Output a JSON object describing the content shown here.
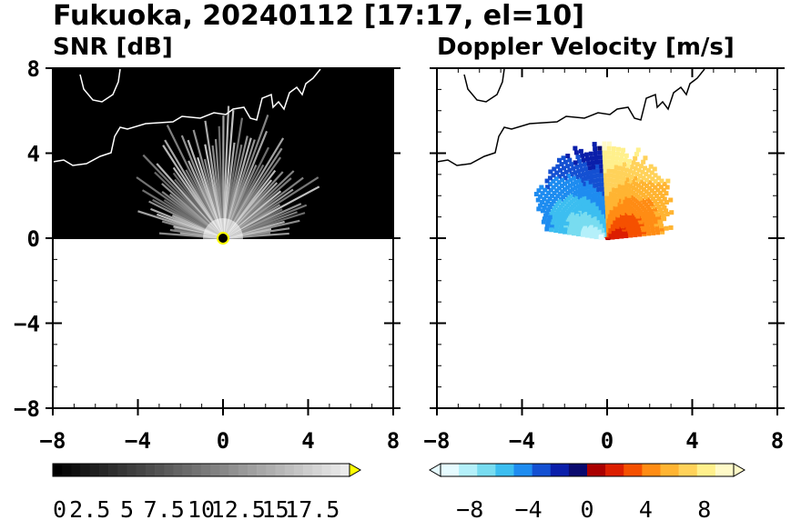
{
  "figure": {
    "title": "Fukuoka, 20240112 [17:17, el=10]"
  },
  "chart_data": [
    {
      "type": "heatmap",
      "title": "SNR [dB]",
      "xlim": [
        -8,
        8
      ],
      "ylim": [
        -8,
        8
      ],
      "xticks": [
        -8,
        -4,
        0,
        4,
        8
      ],
      "yticks": [
        -8,
        -4,
        0,
        4,
        8
      ],
      "xtick_labels": [
        "−8",
        "−4",
        "0",
        "4",
        "8"
      ],
      "ytick_labels": [
        "−8",
        "−4",
        "0",
        "4",
        "8"
      ],
      "data_extent_y": [
        0,
        8
      ],
      "background_color": "#000000",
      "colorbar": {
        "range": [
          0,
          20
        ],
        "ticks": [
          0,
          2.5,
          5,
          7.5,
          10,
          12.5,
          15,
          17.5
        ],
        "tick_labels": [
          "0",
          "2.5",
          "5",
          "7.5",
          "10",
          "12.5",
          "15",
          "17.5"
        ],
        "colormap": "grayscale",
        "extend": "max",
        "extend_color": "#ffff00"
      }
    },
    {
      "type": "heatmap",
      "title": "Doppler Velocity [m/s]",
      "xlim": [
        -8,
        8
      ],
      "ylim": [
        -8,
        8
      ],
      "xticks": [
        -8,
        -4,
        0,
        4,
        8
      ],
      "yticks": [
        -8,
        -4,
        0,
        4,
        8
      ],
      "xtick_labels": [
        "−8",
        "−4",
        "0",
        "4",
        "8"
      ],
      "data_extent_y": [
        0,
        8
      ],
      "colorbar": {
        "range": [
          -10,
          10
        ],
        "ticks": [
          -8,
          -4,
          0,
          4,
          8
        ],
        "tick_labels": [
          "−8",
          "−4",
          "0",
          "4",
          "8"
        ],
        "colormap": "blue-to-red diverging",
        "extend": "both",
        "colors": [
          "#e6fbff",
          "#b4f0fa",
          "#78dcf0",
          "#3cbef0",
          "#1e8cf0",
          "#1450d2",
          "#0a1eaa",
          "#0a0a6e",
          "#aa0000",
          "#dc1e00",
          "#f55000",
          "#ff8c14",
          "#ffb432",
          "#ffd25a",
          "#fff08c",
          "#fffac8"
        ]
      }
    }
  ],
  "colors": {
    "axes": "#000000",
    "coastline_on_dark": "#ffffff",
    "coastline_on_light": "#000000",
    "radar_center": "#ffff00"
  }
}
